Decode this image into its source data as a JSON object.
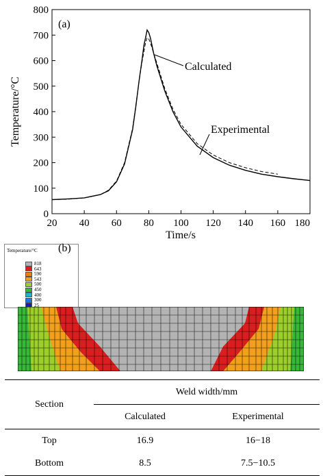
{
  "chart_data": {
    "type": "line",
    "panel_label": "(a)",
    "xlabel": "Time/s",
    "ylabel": "Temperature/°C",
    "xlim": [
      20,
      180
    ],
    "ylim": [
      0,
      800
    ],
    "xticks": [
      "20",
      "40",
      "60",
      "80",
      "100",
      "120",
      "140",
      "160",
      "180"
    ],
    "yticks": [
      "0",
      "100",
      "200",
      "300",
      "400",
      "500",
      "600",
      "700",
      "800"
    ],
    "annotations": [
      "Calculated",
      "Experimental"
    ],
    "series": [
      {
        "name": "Calculated",
        "x": [
          20,
          30,
          40,
          50,
          55,
          60,
          65,
          70,
          72,
          74,
          76,
          77,
          78,
          79,
          80,
          81,
          82,
          83,
          85,
          88,
          90,
          95,
          100,
          110,
          120,
          130,
          140,
          150,
          160,
          170,
          180
        ],
        "y": [
          55,
          58,
          62,
          75,
          90,
          125,
          195,
          330,
          420,
          520,
          610,
          660,
          690,
          720,
          710,
          690,
          660,
          630,
          580,
          520,
          480,
          400,
          340,
          265,
          220,
          190,
          170,
          155,
          145,
          137,
          130
        ]
      },
      {
        "name": "Experimental",
        "x": [
          20,
          30,
          40,
          50,
          55,
          60,
          65,
          70,
          72,
          74,
          76,
          78,
          79,
          80,
          81,
          82,
          85,
          88,
          90,
          95,
          100,
          110,
          120,
          130,
          140,
          150,
          160
        ],
        "y": [
          55,
          57,
          62,
          75,
          92,
          128,
          200,
          335,
          425,
          520,
          600,
          670,
          690,
          685,
          670,
          650,
          590,
          530,
          490,
          410,
          350,
          275,
          230,
          200,
          180,
          165,
          155
        ]
      }
    ]
  },
  "contour": {
    "panel_label": "(b)",
    "legend_title": "Temperature/°C",
    "levels": [
      {
        "value": "818",
        "color": "#b3b3b3"
      },
      {
        "value": "643",
        "color": "#d81e1e"
      },
      {
        "value": "590",
        "color": "#e8801a"
      },
      {
        "value": "543",
        "color": "#f2a01c"
      },
      {
        "value": "500",
        "color": "#9ccf2a"
      },
      {
        "value": "450",
        "color": "#37b838"
      },
      {
        "value": "400",
        "color": "#22b3c8"
      },
      {
        "value": "300",
        "color": "#1e78d8"
      },
      {
        "value": "25",
        "color": "#1a1ab4"
      }
    ]
  },
  "table": {
    "header_section": "Section",
    "header_group": "Weld width/mm",
    "col_calculated": "Calculated",
    "col_experimental": "Experimental",
    "rows": [
      {
        "section": "Top",
        "calculated": "16.9",
        "experimental": "16−18"
      },
      {
        "section": "Bottom",
        "calculated": "8.5",
        "experimental": "7.5−10.5"
      }
    ]
  }
}
